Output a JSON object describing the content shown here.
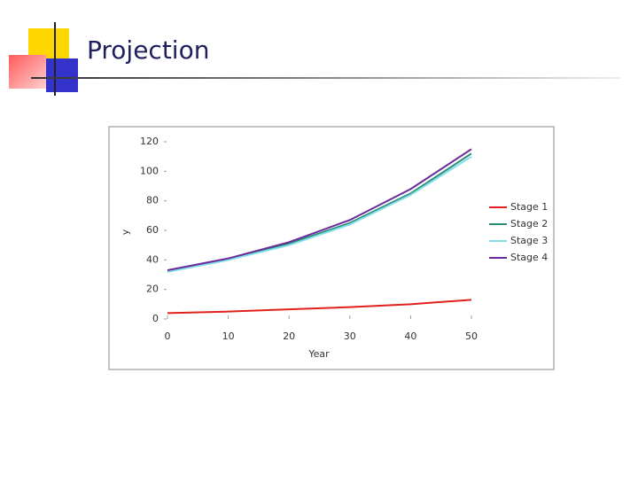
{
  "slide": {
    "title": "Projection"
  },
  "chart_data": {
    "type": "line",
    "xlabel": "Year",
    "ylabel": "y",
    "x": [
      0,
      10,
      20,
      30,
      40,
      50
    ],
    "series": [
      {
        "name": "Stage 1",
        "color": "#e0201c",
        "values": [
          4,
          5,
          6.5,
          8,
          10,
          13
        ]
      },
      {
        "name": "Stage 2",
        "color": "#2e8b7a",
        "values": [
          32,
          40,
          51,
          65,
          85,
          112
        ]
      },
      {
        "name": "Stage 3",
        "color": "#7fe0e8",
        "values": [
          32,
          40,
          50,
          64,
          84,
          110
        ]
      },
      {
        "name": "Stage 4",
        "color": "#6a2a9a",
        "values": [
          33,
          41,
          52,
          67,
          88,
          115
        ]
      }
    ],
    "xlim": [
      0,
      50
    ],
    "xticks": [
      0,
      10,
      20,
      30,
      40,
      50
    ],
    "ylim": [
      0,
      120
    ],
    "yticks": [
      0,
      20,
      40,
      60,
      80,
      100,
      120
    ],
    "legend": "right"
  }
}
